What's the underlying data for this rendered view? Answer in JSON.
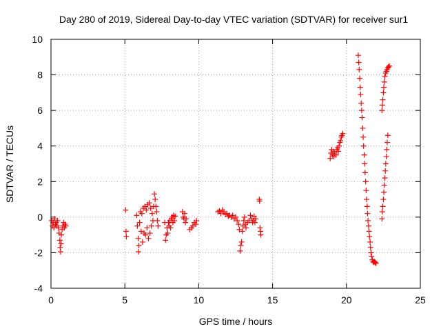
{
  "chart_data": {
    "type": "scatter",
    "title": "Day 280 of 2019, Sidereal Day-to-day VTEC variation (SDTVAR) for receiver sur1",
    "xlabel": "GPS time / hours",
    "ylabel": "SDTVAR / TECUs",
    "xlim": [
      0,
      25
    ],
    "ylim": [
      -4,
      10
    ],
    "xticks": [
      0,
      5,
      10,
      15,
      20,
      25
    ],
    "yticks": [
      -4,
      -2,
      0,
      2,
      4,
      6,
      8,
      10
    ],
    "grid": true,
    "marker": "+",
    "color": "#ff0000",
    "series": [
      {
        "name": "sur1",
        "points": [
          [
            0.05,
            -0.2
          ],
          [
            0.1,
            -0.5
          ],
          [
            0.15,
            -0.3
          ],
          [
            0.2,
            -0.6
          ],
          [
            0.25,
            -0.1
          ],
          [
            0.3,
            -0.4
          ],
          [
            0.35,
            -0.3
          ],
          [
            0.4,
            -0.5
          ],
          [
            0.45,
            -0.2
          ],
          [
            0.5,
            -0.6
          ],
          [
            0.55,
            -0.9
          ],
          [
            0.6,
            -1.3
          ],
          [
            0.62,
            -1.7
          ],
          [
            0.65,
            -1.95
          ],
          [
            0.68,
            -1.5
          ],
          [
            0.7,
            -1.0
          ],
          [
            0.75,
            -0.7
          ],
          [
            0.8,
            -0.5
          ],
          [
            0.85,
            -0.3
          ],
          [
            0.9,
            -0.6
          ],
          [
            0.95,
            -0.4
          ],
          [
            1.0,
            -0.5
          ],
          [
            5.05,
            0.4
          ],
          [
            5.08,
            -0.8
          ],
          [
            5.1,
            -1.1
          ],
          [
            5.8,
            0.1
          ],
          [
            5.85,
            -0.5
          ],
          [
            5.9,
            -1.2
          ],
          [
            5.92,
            -1.95
          ],
          [
            5.95,
            -1.6
          ],
          [
            6.0,
            -0.3
          ],
          [
            6.05,
            0.3
          ],
          [
            6.1,
            -0.8
          ],
          [
            6.15,
            0.2
          ],
          [
            6.2,
            -1.4
          ],
          [
            6.25,
            0.5
          ],
          [
            6.3,
            -0.9
          ],
          [
            6.35,
            0.6
          ],
          [
            6.4,
            -1.0
          ],
          [
            6.45,
            0.4
          ],
          [
            6.5,
            -0.6
          ],
          [
            6.55,
            0.7
          ],
          [
            6.6,
            -1.2
          ],
          [
            6.65,
            0.8
          ],
          [
            6.7,
            -0.9
          ],
          [
            6.75,
            0.5
          ],
          [
            6.8,
            -0.5
          ],
          [
            6.85,
            0.2
          ],
          [
            6.9,
            -0.2
          ],
          [
            6.95,
            0.6
          ],
          [
            7.0,
            1.3
          ],
          [
            7.05,
            1.0
          ],
          [
            7.1,
            0.6
          ],
          [
            7.15,
            0.3
          ],
          [
            7.2,
            -0.2
          ],
          [
            7.25,
            -0.5
          ],
          [
            7.7,
            -0.3
          ],
          [
            7.75,
            -1.3
          ],
          [
            7.8,
            -1.0
          ],
          [
            7.85,
            -0.6
          ],
          [
            7.9,
            -0.9
          ],
          [
            7.95,
            -0.3
          ],
          [
            8.0,
            -0.5
          ],
          [
            8.05,
            -0.2
          ],
          [
            8.1,
            -0.6
          ],
          [
            8.15,
            -0.1
          ],
          [
            8.2,
            0.0
          ],
          [
            8.25,
            -0.3
          ],
          [
            8.3,
            0.1
          ],
          [
            8.35,
            -0.2
          ],
          [
            8.4,
            0.05
          ],
          [
            8.9,
            0.3
          ],
          [
            8.95,
            0.0
          ],
          [
            9.0,
            -0.1
          ],
          [
            9.05,
            0.2
          ],
          [
            9.1,
            -0.3
          ],
          [
            9.15,
            -0.1
          ],
          [
            9.4,
            -0.7
          ],
          [
            9.5,
            -0.6
          ],
          [
            9.6,
            -0.5
          ],
          [
            9.7,
            -0.3
          ],
          [
            9.8,
            -0.4
          ],
          [
            9.85,
            -0.2
          ],
          [
            11.3,
            0.3
          ],
          [
            11.4,
            0.35
          ],
          [
            11.5,
            0.2
          ],
          [
            11.6,
            0.4
          ],
          [
            11.7,
            0.3
          ],
          [
            11.8,
            0.15
          ],
          [
            11.9,
            0.2
          ],
          [
            12.0,
            0.05
          ],
          [
            12.1,
            0.1
          ],
          [
            12.2,
            0.0
          ],
          [
            12.3,
            0.1
          ],
          [
            12.4,
            -0.1
          ],
          [
            12.5,
            0.0
          ],
          [
            12.6,
            -0.2
          ],
          [
            12.7,
            -0.4
          ],
          [
            12.75,
            -0.7
          ],
          [
            12.8,
            -1.9
          ],
          [
            12.85,
            -1.6
          ],
          [
            12.9,
            -1.4
          ],
          [
            12.95,
            -0.8
          ],
          [
            13.0,
            -0.5
          ],
          [
            13.05,
            -0.2
          ],
          [
            13.1,
            0.0
          ],
          [
            13.15,
            -0.4
          ],
          [
            13.2,
            -0.6
          ],
          [
            13.3,
            -0.3
          ],
          [
            13.4,
            -0.2
          ],
          [
            13.5,
            0.1
          ],
          [
            13.6,
            -0.1
          ],
          [
            13.65,
            -0.3
          ],
          [
            13.7,
            -0.2
          ],
          [
            13.75,
            0.05
          ],
          [
            13.8,
            -0.3
          ],
          [
            13.85,
            -0.1
          ],
          [
            14.1,
            1.0
          ],
          [
            14.12,
            0.9
          ],
          [
            14.15,
            -0.6
          ],
          [
            14.18,
            -0.8
          ],
          [
            14.2,
            -1.0
          ],
          [
            18.9,
            3.3
          ],
          [
            18.95,
            3.6
          ],
          [
            19.0,
            3.8
          ],
          [
            19.05,
            3.5
          ],
          [
            19.1,
            3.7
          ],
          [
            19.15,
            3.4
          ],
          [
            19.2,
            3.6
          ],
          [
            19.3,
            3.5
          ],
          [
            19.35,
            3.8
          ],
          [
            19.4,
            3.9
          ],
          [
            19.45,
            3.7
          ],
          [
            19.5,
            4.0
          ],
          [
            19.55,
            4.2
          ],
          [
            19.6,
            4.3
          ],
          [
            19.65,
            4.5
          ],
          [
            19.7,
            4.6
          ],
          [
            19.75,
            4.7
          ],
          [
            20.8,
            9.1
          ],
          [
            20.83,
            8.7
          ],
          [
            20.86,
            8.3
          ],
          [
            20.9,
            7.8
          ],
          [
            20.93,
            7.3
          ],
          [
            20.96,
            6.9
          ],
          [
            21.0,
            6.4
          ],
          [
            21.03,
            6.0
          ],
          [
            21.06,
            5.6
          ],
          [
            21.1,
            5.0
          ],
          [
            21.13,
            4.5
          ],
          [
            21.16,
            4.0
          ],
          [
            21.2,
            3.5
          ],
          [
            21.23,
            3.0
          ],
          [
            21.26,
            2.5
          ],
          [
            21.3,
            2.0
          ],
          [
            21.33,
            1.5
          ],
          [
            21.36,
            1.0
          ],
          [
            21.4,
            0.6
          ],
          [
            21.43,
            0.2
          ],
          [
            21.46,
            -0.2
          ],
          [
            21.5,
            -0.5
          ],
          [
            21.53,
            -0.8
          ],
          [
            21.56,
            -1.1
          ],
          [
            21.6,
            -1.4
          ],
          [
            21.63,
            -1.7
          ],
          [
            21.66,
            -2.0
          ],
          [
            21.7,
            -2.2
          ],
          [
            21.75,
            -2.4
          ],
          [
            21.8,
            -2.5
          ],
          [
            21.85,
            -2.55
          ],
          [
            21.9,
            -2.5
          ],
          [
            21.95,
            -2.55
          ],
          [
            22.0,
            -2.6
          ],
          [
            22.4,
            -0.1
          ],
          [
            22.43,
            0.3
          ],
          [
            22.46,
            0.6
          ],
          [
            22.5,
            1.0
          ],
          [
            22.53,
            1.4
          ],
          [
            22.56,
            1.8
          ],
          [
            22.6,
            2.2
          ],
          [
            22.63,
            2.6
          ],
          [
            22.66,
            3.0
          ],
          [
            22.7,
            3.4
          ],
          [
            22.73,
            3.8
          ],
          [
            22.76,
            4.2
          ],
          [
            22.8,
            4.6
          ],
          [
            22.4,
            6.0
          ],
          [
            22.43,
            6.3
          ],
          [
            22.46,
            6.6
          ],
          [
            22.5,
            7.0
          ],
          [
            22.53,
            7.3
          ],
          [
            22.56,
            7.6
          ],
          [
            22.6,
            7.9
          ],
          [
            22.65,
            8.1
          ],
          [
            22.7,
            8.2
          ],
          [
            22.75,
            8.3
          ],
          [
            22.8,
            8.4
          ],
          [
            22.85,
            8.45
          ],
          [
            22.9,
            8.5
          ]
        ]
      }
    ]
  }
}
